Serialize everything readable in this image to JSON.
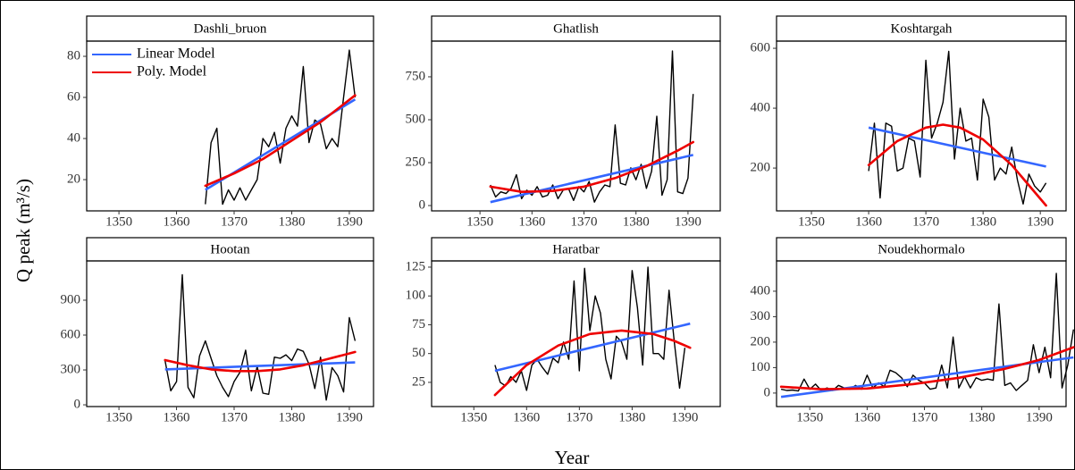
{
  "y_label": "Q peak (m³/s)",
  "x_label": "Year",
  "chart_data": [
    {
      "type": "line",
      "title": "Dashli_bruon",
      "legend": "top-left",
      "x": [
        1365,
        1366,
        1367,
        1368,
        1369,
        1370,
        1371,
        1372,
        1373,
        1374,
        1375,
        1376,
        1377,
        1378,
        1379,
        1380,
        1381,
        1382,
        1383,
        1384,
        1385,
        1386,
        1387,
        1388,
        1389,
        1390,
        1391
      ],
      "series": [
        {
          "color": "#000000",
          "values": [
            8,
            38,
            45,
            8,
            15,
            10,
            16,
            10,
            15,
            20,
            40,
            36,
            43,
            28,
            45,
            51,
            46,
            75,
            38,
            49,
            47,
            35,
            40,
            36,
            60,
            83,
            60
          ]
        },
        {
          "name": "Linear Model",
          "color": "#3366ff",
          "x": [
            1365,
            1391
          ],
          "values": [
            15,
            59
          ]
        },
        {
          "name": "Poly. Model",
          "color": "#ee0000",
          "x": [
            1365,
            1370,
            1375,
            1380,
            1385,
            1391
          ],
          "values": [
            17,
            23,
            30,
            39,
            48,
            61
          ]
        }
      ],
      "xlim": [
        1344.4,
        1394.2
      ],
      "ylim": [
        4.8,
        87.4
      ],
      "xticks": [
        1350,
        1360,
        1370,
        1380,
        1390
      ],
      "yticks": [
        20,
        40,
        60,
        80
      ]
    },
    {
      "type": "line",
      "title": "Ghatlish",
      "x": [
        1352,
        1353,
        1354,
        1355,
        1356,
        1357,
        1358,
        1359,
        1360,
        1361,
        1362,
        1363,
        1364,
        1365,
        1366,
        1367,
        1368,
        1369,
        1370,
        1371,
        1372,
        1373,
        1374,
        1375,
        1376,
        1377,
        1378,
        1379,
        1380,
        1381,
        1382,
        1383,
        1384,
        1385,
        1386,
        1387,
        1388,
        1389,
        1390,
        1391
      ],
      "series": [
        {
          "color": "#000000",
          "values": [
            120,
            50,
            80,
            70,
            100,
            180,
            40,
            90,
            60,
            110,
            50,
            60,
            120,
            40,
            90,
            100,
            30,
            110,
            80,
            140,
            20,
            80,
            120,
            110,
            470,
            130,
            120,
            220,
            150,
            240,
            100,
            200,
            520,
            60,
            150,
            900,
            80,
            70,
            160,
            650
          ]
        },
        {
          "color": "#3366ff",
          "x": [
            1352,
            1391
          ],
          "values": [
            20,
            295
          ]
        },
        {
          "color": "#ee0000",
          "x": [
            1352,
            1358,
            1364,
            1370,
            1376,
            1382,
            1388,
            1391
          ],
          "values": [
            110,
            80,
            85,
            110,
            160,
            230,
            320,
            370
          ]
        }
      ],
      "xlim": [
        1340.7,
        1396.2
      ],
      "ylim": [
        -31,
        958
      ],
      "xticks": [
        1350,
        1360,
        1370,
        1380,
        1390
      ],
      "yticks": [
        0,
        250,
        500,
        750
      ]
    },
    {
      "type": "line",
      "title": "Koshtargah",
      "x": [
        1360,
        1361,
        1362,
        1363,
        1364,
        1365,
        1366,
        1367,
        1368,
        1369,
        1370,
        1371,
        1372,
        1373,
        1374,
        1375,
        1376,
        1377,
        1378,
        1379,
        1380,
        1381,
        1382,
        1383,
        1384,
        1385,
        1386,
        1387,
        1388,
        1389,
        1390,
        1391
      ],
      "series": [
        {
          "color": "#000000",
          "values": [
            190,
            350,
            100,
            350,
            340,
            190,
            200,
            300,
            290,
            170,
            560,
            300,
            350,
            420,
            590,
            230,
            400,
            290,
            300,
            160,
            430,
            370,
            160,
            200,
            180,
            270,
            160,
            80,
            180,
            140,
            120,
            150
          ]
        },
        {
          "color": "#3366ff",
          "x": [
            1360,
            1391
          ],
          "values": [
            335,
            205
          ]
        },
        {
          "color": "#ee0000",
          "x": [
            1360,
            1365,
            1370,
            1373,
            1376,
            1380,
            1385,
            1391
          ],
          "values": [
            210,
            290,
            335,
            345,
            335,
            295,
            210,
            75
          ]
        }
      ],
      "xlim": [
        1343.9,
        1394.5
      ],
      "ylim": [
        57,
        624
      ],
      "xticks": [
        1350,
        1360,
        1370,
        1380,
        1390
      ],
      "yticks": [
        200,
        400,
        600
      ]
    },
    {
      "type": "line",
      "title": "Hootan",
      "x": [
        1358,
        1359,
        1360,
        1361,
        1362,
        1363,
        1364,
        1365,
        1366,
        1367,
        1368,
        1369,
        1370,
        1371,
        1372,
        1373,
        1374,
        1375,
        1376,
        1377,
        1378,
        1379,
        1380,
        1381,
        1382,
        1383,
        1384,
        1385,
        1386,
        1387,
        1388,
        1389,
        1390,
        1391
      ],
      "series": [
        {
          "color": "#000000",
          "values": [
            380,
            120,
            200,
            1120,
            150,
            60,
            420,
            550,
            400,
            250,
            150,
            70,
            200,
            280,
            470,
            120,
            330,
            100,
            90,
            410,
            400,
            430,
            380,
            480,
            460,
            350,
            140,
            410,
            40,
            320,
            250,
            110,
            750,
            550
          ]
        },
        {
          "color": "#3366ff",
          "x": [
            1358,
            1391
          ],
          "values": [
            305,
            365
          ]
        },
        {
          "color": "#ee0000",
          "x": [
            1358,
            1362,
            1366,
            1370,
            1374,
            1378,
            1382,
            1386,
            1391
          ],
          "values": [
            385,
            340,
            305,
            290,
            290,
            305,
            340,
            390,
            455
          ]
        }
      ],
      "xlim": [
        1344.4,
        1394.2
      ],
      "ylim": [
        -15,
        1238
      ],
      "xticks": [
        1350,
        1360,
        1370,
        1380,
        1390
      ],
      "yticks": [
        0,
        300,
        600,
        900
      ]
    },
    {
      "type": "line",
      "title": "Haratbar",
      "x": [
        1354,
        1355,
        1356,
        1357,
        1358,
        1359,
        1360,
        1361,
        1362,
        1363,
        1364,
        1365,
        1366,
        1367,
        1368,
        1369,
        1370,
        1371,
        1372,
        1373,
        1374,
        1375,
        1376,
        1377,
        1378,
        1379,
        1380,
        1381,
        1382,
        1383,
        1384,
        1385,
        1386,
        1387,
        1388,
        1389,
        1390
      ],
      "series": [
        {
          "color": "#000000",
          "values": [
            40,
            25,
            22,
            30,
            25,
            35,
            18,
            40,
            45,
            38,
            32,
            46,
            42,
            60,
            45,
            113,
            35,
            124,
            70,
            100,
            85,
            45,
            28,
            65,
            60,
            45,
            122,
            90,
            40,
            125,
            50,
            50,
            45,
            105,
            60,
            20,
            55
          ]
        },
        {
          "color": "#3366ff",
          "x": [
            1354,
            1391
          ],
          "values": [
            35,
            76
          ]
        },
        {
          "color": "#ee0000",
          "x": [
            1354,
            1360,
            1366,
            1372,
            1378,
            1384,
            1388,
            1391
          ],
          "values": [
            14,
            40,
            57,
            67,
            70,
            67,
            61,
            55
          ]
        }
      ],
      "xlim": [
        1342,
        1396.7
      ],
      "ylim": [
        4,
        130.4
      ],
      "xticks": [
        1350,
        1360,
        1370,
        1380,
        1390
      ],
      "yticks": [
        25,
        50,
        75,
        100,
        125
      ]
    },
    {
      "type": "line",
      "title": "Noudekhormalo",
      "x": [
        1345,
        1346,
        1347,
        1348,
        1349,
        1350,
        1351,
        1352,
        1353,
        1354,
        1355,
        1356,
        1357,
        1358,
        1359,
        1360,
        1361,
        1362,
        1363,
        1364,
        1365,
        1366,
        1367,
        1368,
        1369,
        1370,
        1371,
        1372,
        1373,
        1374,
        1375,
        1376,
        1377,
        1378,
        1379,
        1380,
        1381,
        1382,
        1383,
        1384,
        1385,
        1386,
        1387,
        1388,
        1389,
        1390,
        1391,
        1392,
        1393,
        1394,
        1395,
        1396
      ],
      "series": [
        {
          "color": "#000000",
          "values": [
            15,
            10,
            12,
            8,
            55,
            15,
            35,
            10,
            20,
            10,
            30,
            20,
            15,
            30,
            15,
            70,
            20,
            40,
            25,
            90,
            80,
            60,
            25,
            70,
            50,
            40,
            15,
            20,
            110,
            20,
            220,
            20,
            65,
            20,
            60,
            50,
            55,
            50,
            350,
            30,
            40,
            10,
            30,
            50,
            190,
            80,
            180,
            60,
            470,
            20,
            110,
            250
          ]
        },
        {
          "color": "#3366ff",
          "x": [
            1345,
            1396
          ],
          "values": [
            -15,
            140
          ]
        },
        {
          "color": "#ee0000",
          "x": [
            1345,
            1352,
            1360,
            1368,
            1376,
            1384,
            1390,
            1396
          ],
          "values": [
            25,
            15,
            18,
            35,
            60,
            95,
            130,
            180
          ]
        }
      ],
      "xlim": [
        1344.2,
        1394.7
      ],
      "ylim": [
        -53,
        519
      ],
      "xticks": [
        1350,
        1360,
        1370,
        1380,
        1390
      ],
      "yticks": [
        0,
        100,
        200,
        300,
        400
      ]
    }
  ]
}
